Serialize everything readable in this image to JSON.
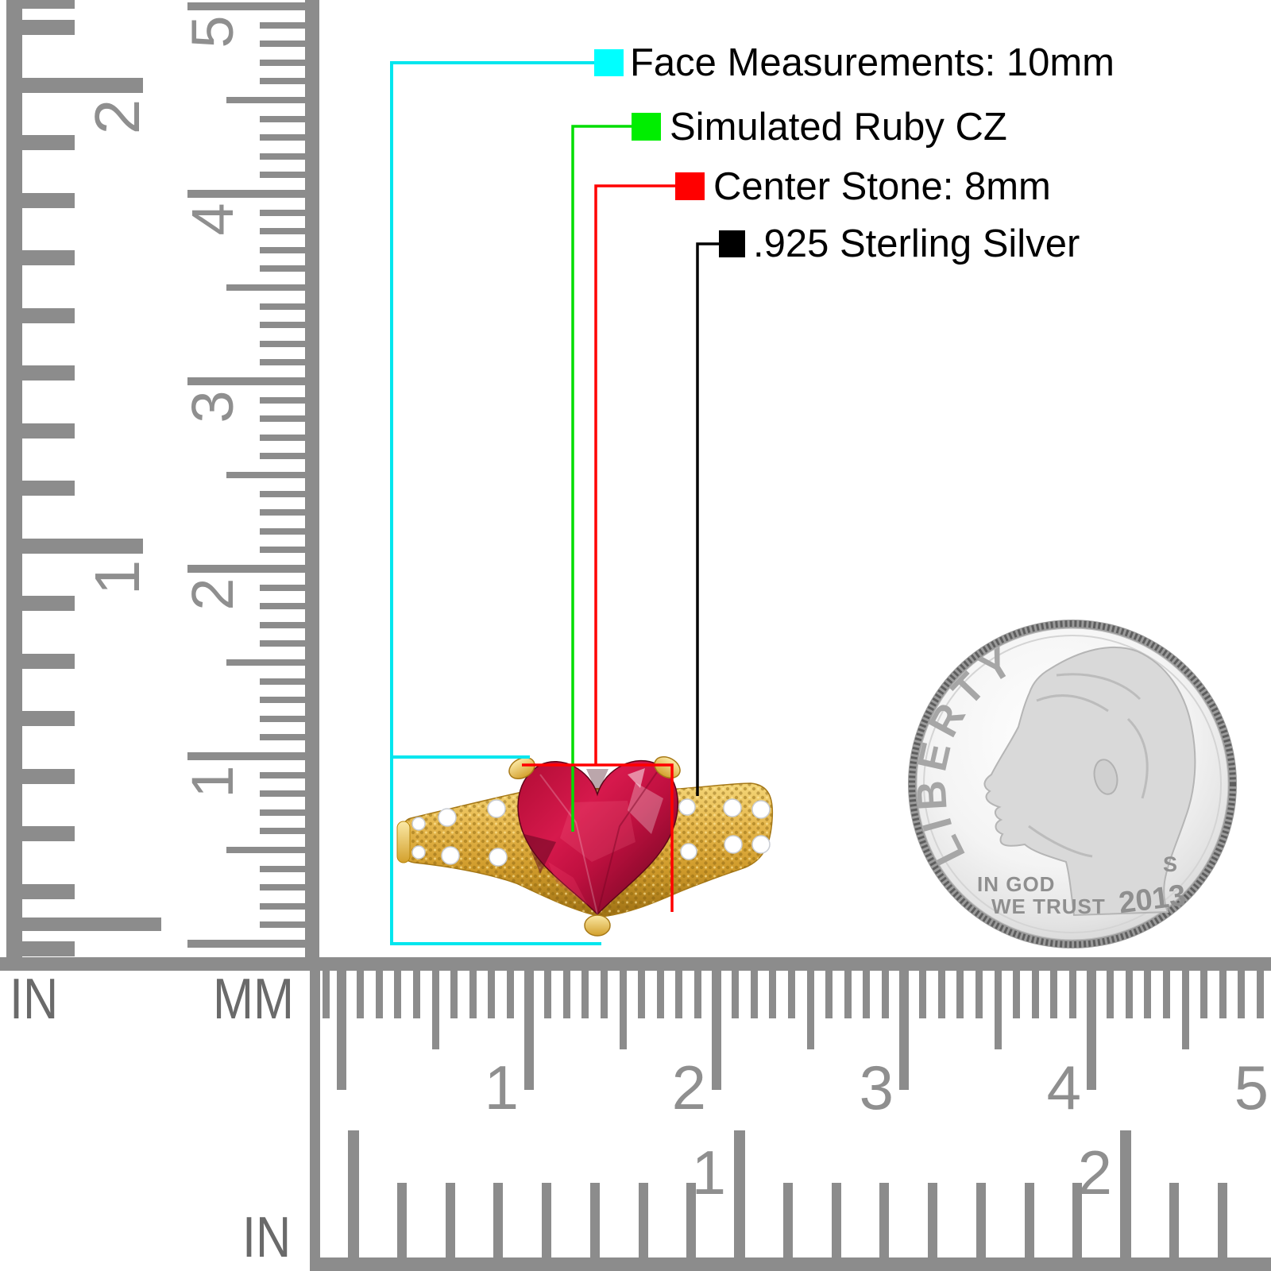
{
  "legend": {
    "items": [
      {
        "label": "Face Measurements: 10mm",
        "swatch_color": "#00ffff",
        "line_color": "#00e6ee"
      },
      {
        "label": "Simulated Ruby CZ",
        "swatch_color": "#00ee00",
        "line_color": "#00dd00"
      },
      {
        "label": "Center Stone: 8mm",
        "swatch_color": "#ff0000",
        "line_color": "#ff0000"
      },
      {
        "label": ".925 Sterling Silver",
        "swatch_color": "#000000",
        "line_color": "#000000"
      }
    ]
  },
  "rulers": {
    "left_inch": {
      "unit": "IN",
      "numbers": [
        "2",
        "1"
      ]
    },
    "left_mm": {
      "unit": "MM",
      "numbers": [
        "5",
        "4",
        "3",
        "2",
        "1"
      ]
    },
    "bottom_mm": {
      "numbers": [
        "1",
        "2",
        "3",
        "4",
        "5"
      ]
    },
    "bottom_inch": {
      "unit": "IN",
      "numbers": [
        "1",
        "2"
      ]
    }
  },
  "coin": {
    "liberty_text": "LIBERTY",
    "motto_line1": "IN GOD",
    "motto_line2": "WE TRUST",
    "year": "2013",
    "mint_mark": "S"
  },
  "colors": {
    "tick_gray": "#8c8c8c",
    "number_gray": "#8f8f8f",
    "unit_gray": "#6a6a6a",
    "gold": "#dfa92f",
    "ruby": "#c01040",
    "silver_face": "#efefef"
  }
}
